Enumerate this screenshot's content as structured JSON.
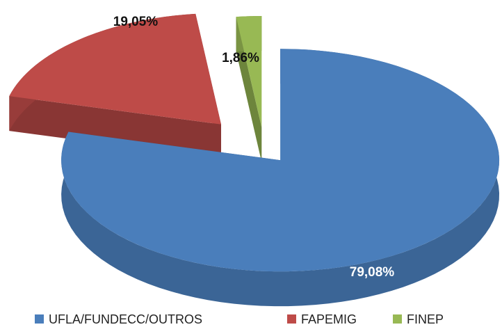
{
  "chart_data": {
    "type": "pie",
    "categories": [
      "UFLA/FUNDECC/OUTROS",
      "FAPEMIG",
      "FINEP"
    ],
    "values": [
      79.08,
      19.05,
      1.86
    ],
    "value_labels": [
      "79,08%",
      "19,05%",
      "1,86%"
    ],
    "colors": [
      "#4a7ebb",
      "#be4b48",
      "#98b954"
    ],
    "legend": "bottom"
  }
}
